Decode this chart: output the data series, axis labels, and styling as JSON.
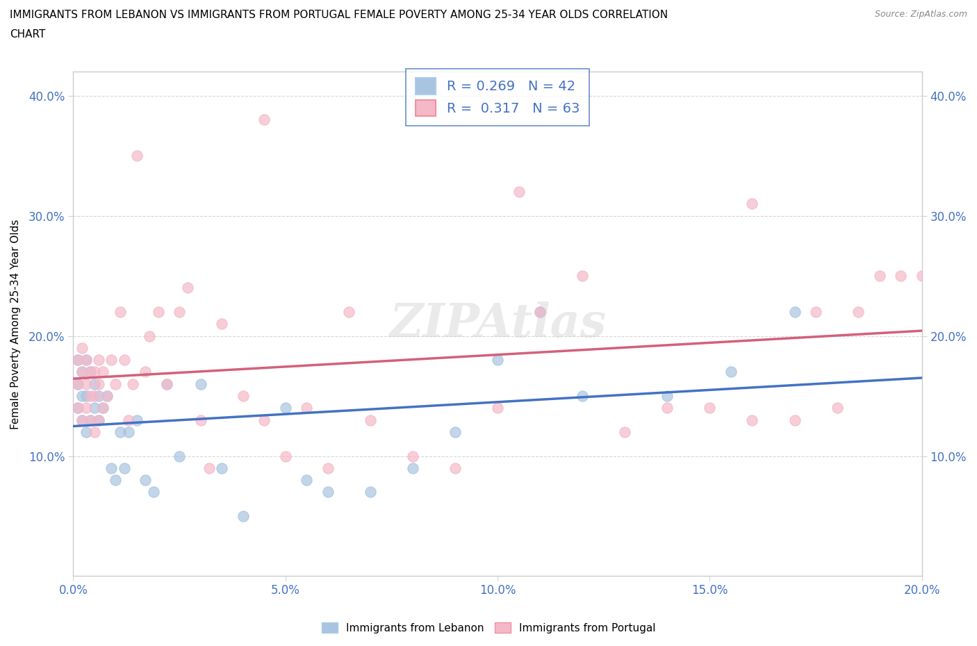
{
  "title": "IMMIGRANTS FROM LEBANON VS IMMIGRANTS FROM PORTUGAL FEMALE POVERTY AMONG 25-34 YEAR OLDS CORRELATION\nCHART",
  "source": "Source: ZipAtlas.com",
  "ylabel": "Female Poverty Among 25-34 Year Olds",
  "xlim": [
    0.0,
    0.2
  ],
  "ylim": [
    0.0,
    0.42
  ],
  "xticks": [
    0.0,
    0.05,
    0.1,
    0.15,
    0.2
  ],
  "yticks": [
    0.1,
    0.2,
    0.3,
    0.4
  ],
  "ytick_labels": [
    "10.0%",
    "20.0%",
    "30.0%",
    "40.0%"
  ],
  "xtick_labels": [
    "0.0%",
    "5.0%",
    "10.0%",
    "15.0%",
    "20.0%"
  ],
  "r_lebanon": 0.269,
  "n_lebanon": 42,
  "r_portugal": 0.317,
  "n_portugal": 63,
  "color_lebanon": "#a8c4e0",
  "color_portugal": "#f4b8c8",
  "line_color_lebanon": "#4472c4",
  "line_color_portugal": "#d4607a",
  "watermark": "ZIPAtlas",
  "lebanon_x": [
    0.001,
    0.001,
    0.001,
    0.002,
    0.002,
    0.002,
    0.003,
    0.003,
    0.003,
    0.004,
    0.004,
    0.005,
    0.005,
    0.006,
    0.006,
    0.007,
    0.008,
    0.009,
    0.01,
    0.011,
    0.012,
    0.013,
    0.015,
    0.017,
    0.019,
    0.022,
    0.025,
    0.03,
    0.035,
    0.04,
    0.05,
    0.055,
    0.06,
    0.07,
    0.08,
    0.09,
    0.1,
    0.11,
    0.12,
    0.14,
    0.155,
    0.17
  ],
  "lebanon_y": [
    0.14,
    0.16,
    0.18,
    0.13,
    0.15,
    0.17,
    0.12,
    0.15,
    0.18,
    0.13,
    0.17,
    0.14,
    0.16,
    0.13,
    0.15,
    0.14,
    0.15,
    0.09,
    0.08,
    0.12,
    0.09,
    0.12,
    0.13,
    0.08,
    0.07,
    0.16,
    0.1,
    0.16,
    0.09,
    0.05,
    0.14,
    0.08,
    0.07,
    0.07,
    0.09,
    0.12,
    0.18,
    0.22,
    0.15,
    0.15,
    0.17,
    0.22
  ],
  "portugal_x": [
    0.001,
    0.001,
    0.001,
    0.002,
    0.002,
    0.002,
    0.003,
    0.003,
    0.003,
    0.004,
    0.004,
    0.004,
    0.005,
    0.005,
    0.005,
    0.006,
    0.006,
    0.006,
    0.007,
    0.007,
    0.008,
    0.009,
    0.01,
    0.011,
    0.012,
    0.013,
    0.014,
    0.015,
    0.017,
    0.018,
    0.02,
    0.022,
    0.025,
    0.027,
    0.03,
    0.032,
    0.035,
    0.04,
    0.045,
    0.05,
    0.055,
    0.06,
    0.065,
    0.07,
    0.08,
    0.09,
    0.1,
    0.11,
    0.12,
    0.13,
    0.14,
    0.15,
    0.16,
    0.17,
    0.175,
    0.18,
    0.185,
    0.19,
    0.195,
    0.2,
    0.045,
    0.105,
    0.16
  ],
  "portugal_y": [
    0.14,
    0.16,
    0.18,
    0.13,
    0.17,
    0.19,
    0.14,
    0.16,
    0.18,
    0.13,
    0.15,
    0.17,
    0.12,
    0.15,
    0.17,
    0.13,
    0.16,
    0.18,
    0.14,
    0.17,
    0.15,
    0.18,
    0.16,
    0.22,
    0.18,
    0.13,
    0.16,
    0.35,
    0.17,
    0.2,
    0.22,
    0.16,
    0.22,
    0.24,
    0.13,
    0.09,
    0.21,
    0.15,
    0.13,
    0.1,
    0.14,
    0.09,
    0.22,
    0.13,
    0.1,
    0.09,
    0.14,
    0.22,
    0.25,
    0.12,
    0.14,
    0.14,
    0.13,
    0.13,
    0.22,
    0.14,
    0.22,
    0.25,
    0.25,
    0.25,
    0.38,
    0.32,
    0.31
  ]
}
